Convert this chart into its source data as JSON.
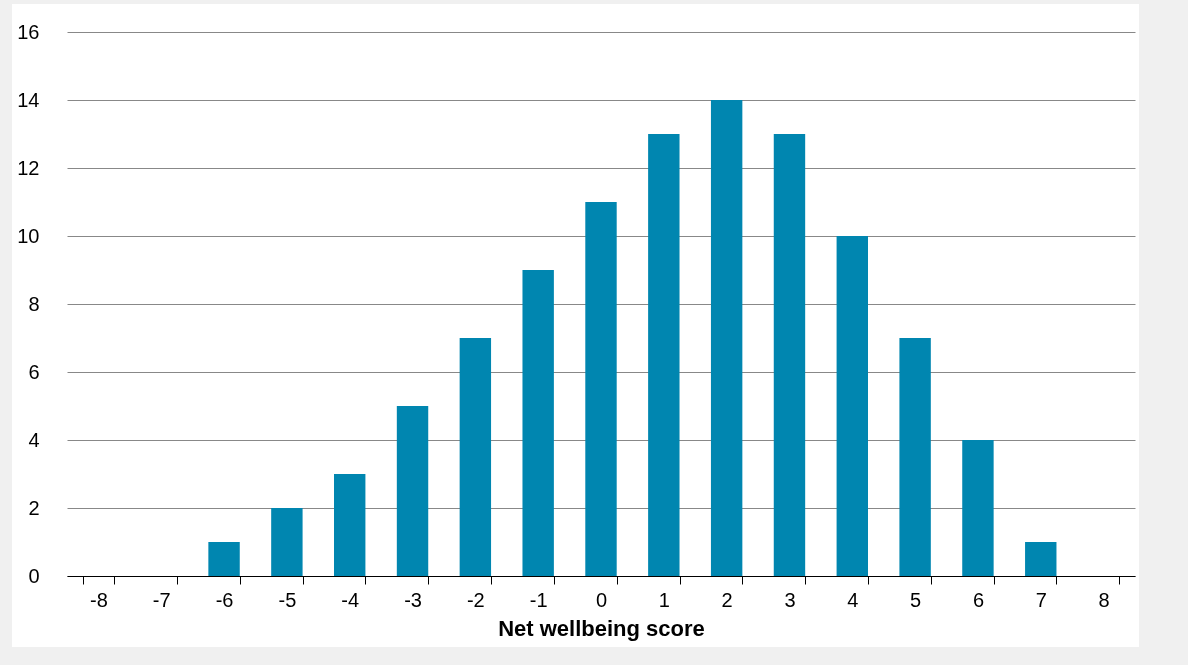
{
  "chart_data": {
    "type": "bar",
    "xlabel": "Net wellbeing score",
    "categories": [
      "-8",
      "-7",
      "-6",
      "-5",
      "-4",
      "-3",
      "-2",
      "-1",
      "0",
      "1",
      "2",
      "3",
      "4",
      "5",
      "6",
      "7",
      "8"
    ],
    "values": [
      0,
      0,
      1,
      2,
      3,
      5,
      7,
      9,
      11,
      13,
      14,
      13,
      10,
      7,
      4,
      1,
      0
    ],
    "color": "#0086b0",
    "ylim": [
      0,
      16
    ],
    "yticks": [
      0,
      2,
      4,
      6,
      8,
      10,
      12,
      14,
      16
    ],
    "grid": "y"
  }
}
